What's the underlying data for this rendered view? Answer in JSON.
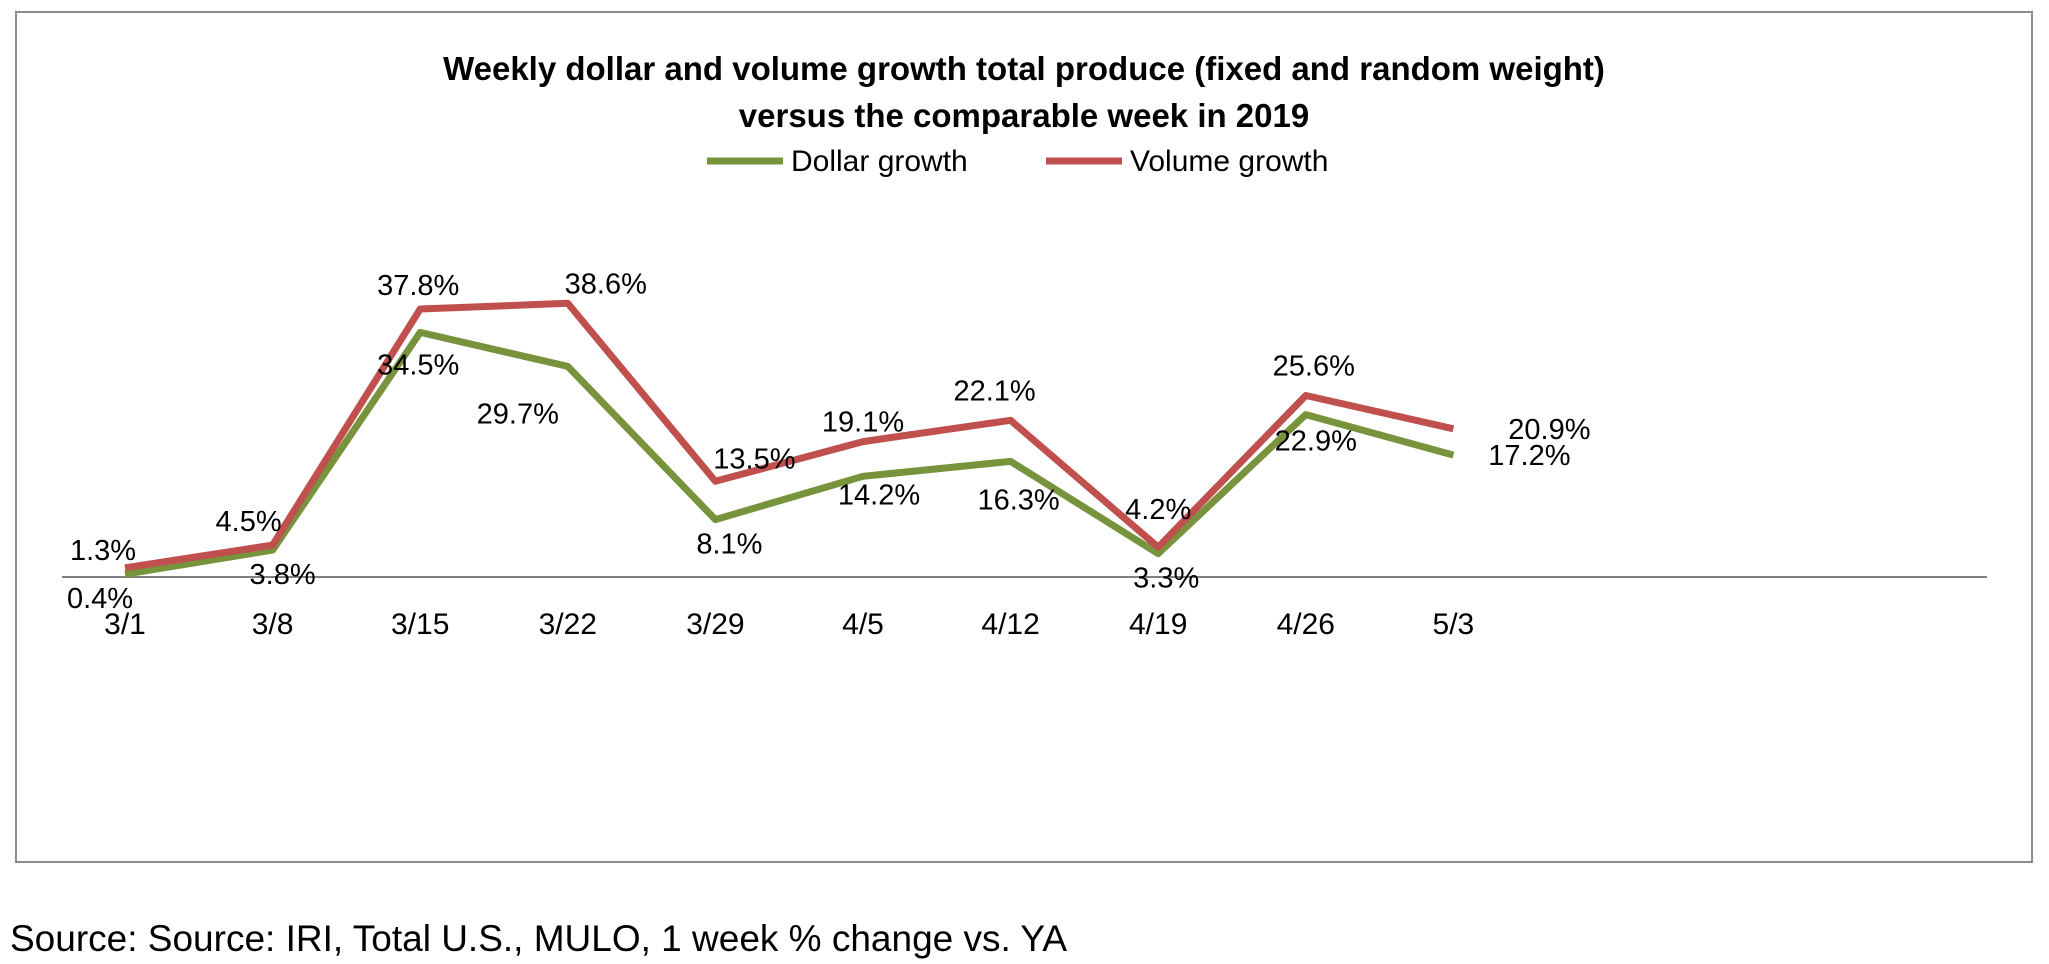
{
  "chart_data": {
    "type": "line",
    "title": [
      "Weekly dollar and volume growth  total produce (fixed and random weight)",
      "versus the comparable week in 2019"
    ],
    "categories": [
      "3/1",
      "3/8",
      "3/15",
      "3/22",
      "3/29",
      "4/5",
      "4/12",
      "4/19",
      "4/26",
      "5/3"
    ],
    "series": [
      {
        "name": "Dollar growth",
        "color": "#77933C",
        "values": [
          0.4,
          3.8,
          34.5,
          29.7,
          8.1,
          14.2,
          16.3,
          3.3,
          22.9,
          17.2
        ],
        "labels": [
          "0.4%",
          "3.8%",
          "34.5%",
          "29.7%",
          "8.1%",
          "14.2%",
          "16.3%",
          "3.3%",
          "22.9%",
          "17.2%"
        ]
      },
      {
        "name": "Volume growth",
        "color": "#C0504D",
        "values": [
          1.3,
          4.5,
          37.8,
          38.6,
          13.5,
          19.1,
          22.1,
          4.2,
          25.6,
          20.9
        ],
        "labels": [
          "1.3%",
          "4.5%",
          "37.8%",
          "38.6%",
          "13.5%",
          "19.1%",
          "22.1%",
          "4.2%",
          "25.6%",
          "20.9%"
        ]
      }
    ],
    "legend_position": "top-center",
    "grid": false,
    "ylim": [
      0,
      45
    ]
  },
  "source_note": "Source: Source: IRI, Total U.S., MULO, 1 week % change vs. YA"
}
